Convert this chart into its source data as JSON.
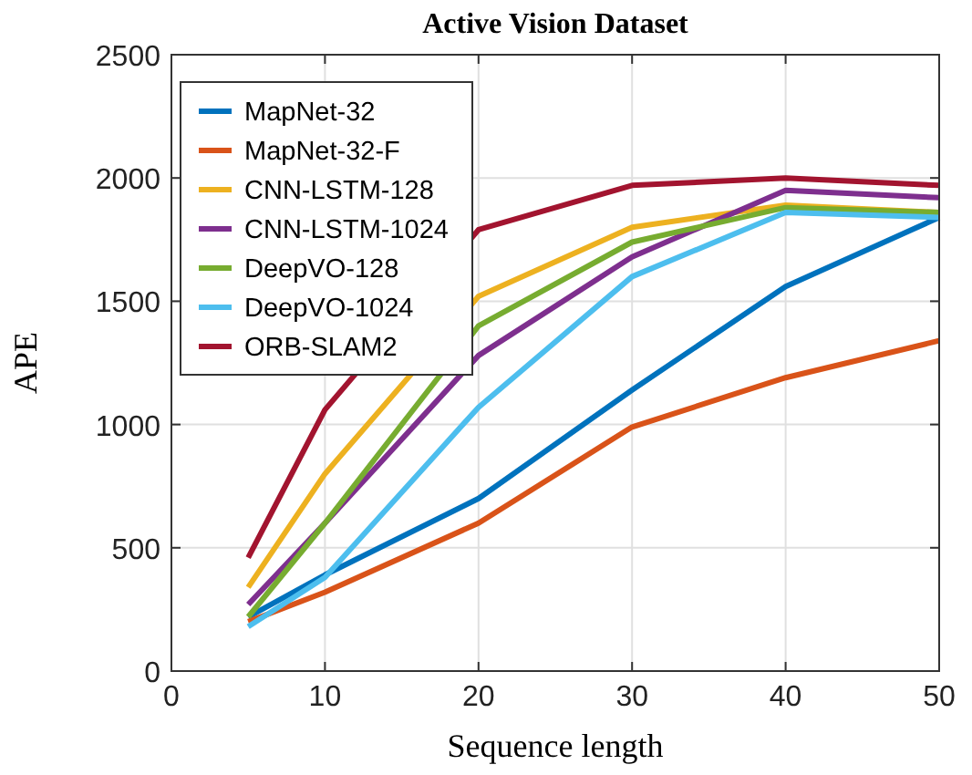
{
  "chart_data": {
    "type": "line",
    "title": "Active Vision Dataset",
    "xlabel": "Sequence length",
    "ylabel": "APE",
    "x": [
      5,
      10,
      20,
      30,
      40,
      50
    ],
    "series": [
      {
        "name": "MapNet-32",
        "color": "#0072bd",
        "values": [
          220,
          390,
          700,
          1140,
          1560,
          1840
        ]
      },
      {
        "name": "MapNet-32-F",
        "color": "#d95319",
        "values": [
          200,
          320,
          600,
          990,
          1190,
          1340
        ]
      },
      {
        "name": "CNN-LSTM-128",
        "color": "#edb120",
        "values": [
          340,
          800,
          1520,
          1800,
          1890,
          1860
        ]
      },
      {
        "name": "CNN-LSTM-1024",
        "color": "#7e2f8e",
        "values": [
          270,
          600,
          1280,
          1680,
          1950,
          1920
        ]
      },
      {
        "name": "DeepVO-128",
        "color": "#77ac30",
        "values": [
          220,
          600,
          1400,
          1740,
          1880,
          1860
        ]
      },
      {
        "name": "DeepVO-1024",
        "color": "#4dbeee",
        "values": [
          180,
          380,
          1070,
          1600,
          1860,
          1840
        ]
      },
      {
        "name": "ORB-SLAM2",
        "color": "#a2142f",
        "values": [
          460,
          1060,
          1790,
          1970,
          2000,
          1970
        ]
      }
    ],
    "xlim": [
      0,
      50
    ],
    "xticks": [
      0,
      10,
      20,
      30,
      40,
      50
    ],
    "ylim": [
      0,
      2500
    ],
    "yticks": [
      0,
      500,
      1000,
      1500,
      2000,
      2500
    ],
    "grid": true,
    "legend": "top left",
    "marker": "none",
    "line_style": "solid"
  }
}
